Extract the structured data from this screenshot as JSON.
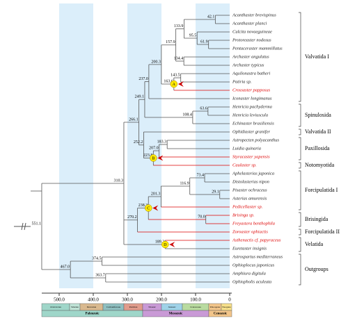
{
  "taxa": [
    {
      "name": "Acanthaster brevispinus",
      "highlight": false
    },
    {
      "name": "Acanthaster planci",
      "highlight": false
    },
    {
      "name": "Culcita novaeguineae",
      "highlight": false
    },
    {
      "name": "Protoreaster nodosus",
      "highlight": false
    },
    {
      "name": "Pentaceraster mammillatus",
      "highlight": false
    },
    {
      "name": "Archaster angulatus",
      "highlight": false
    },
    {
      "name": "Archaster typicus",
      "highlight": false
    },
    {
      "name": "Aquilonastra batheri",
      "highlight": false
    },
    {
      "name": "Patiria sp.",
      "highlight": false
    },
    {
      "name": "Crossaster papposus",
      "highlight": true
    },
    {
      "name": "Iconaster longimanus",
      "highlight": false
    },
    {
      "name": "Henricia pachyderma",
      "highlight": false
    },
    {
      "name": "Henricia leviuscula",
      "highlight": false
    },
    {
      "name": "Echinaster brasiliensis",
      "highlight": false
    },
    {
      "name": "Ophidiaster granifer",
      "highlight": false
    },
    {
      "name": "Astropecten polyacanthus",
      "highlight": false
    },
    {
      "name": "Luidia quinaria",
      "highlight": false
    },
    {
      "name": "Styracaster yapensis",
      "highlight": true
    },
    {
      "name": "Caulaster sp.",
      "highlight": true
    },
    {
      "name": "Aphelasterias japonica",
      "highlight": false
    },
    {
      "name": "Distolasterias nipon",
      "highlight": false
    },
    {
      "name": "Pisaster ochraceus",
      "highlight": false
    },
    {
      "name": "Asterias amurensis",
      "highlight": false
    },
    {
      "name": "Pedicellaster sp.",
      "highlight": true
    },
    {
      "name": "Brisinga sp.",
      "highlight": true
    },
    {
      "name": "Freyastera benthophila",
      "highlight": true
    },
    {
      "name": "Zoroaster ophiactis",
      "highlight": true
    },
    {
      "name": "Asthenactis cf. papyraceus",
      "highlight": true
    },
    {
      "name": "Euretaster insignis",
      "highlight": false
    },
    {
      "name": "Astrospartus mediterraneus",
      "highlight": false
    },
    {
      "name": "Ophioplocus japonicus",
      "highlight": false
    },
    {
      "name": "Amphiura digitula",
      "highlight": false
    },
    {
      "name": "Ophiopholis aculeata",
      "highlight": false
    }
  ],
  "groups": [
    "Valvatida I",
    "Spinulosida",
    "Valvatida II",
    "Paxillosida",
    "Notomyotida",
    "Forcipulatida I",
    "Brisingida",
    "Forcipulatida II",
    "Velatida",
    "Outgroups"
  ],
  "nodes": [
    42.1,
    95.5,
    61.9,
    133.9,
    134.4,
    157.9,
    143.5,
    163.6,
    200.3,
    {
      "value": 237,
      "label": "237.0"
    },
    63.6,
    108.4,
    249.1,
    266.1,
    183.3,
    {
      "value": 207,
      "label": "207.0"
    },
    223.8,
    252.2,
    73.4,
    29.1,
    116.9,
    201.3,
    {
      "value": 70,
      "label": "70.0"
    },
    238.3,
    270.2,
    189.2,
    310.3,
    374.5,
    363.7,
    {
      "value": 467,
      "label": "467.0"
    },
    551.1
  ],
  "markers": [
    "A",
    "B",
    "C",
    "D"
  ],
  "time_axis": {
    "ticks": [
      {
        "value": 500,
        "label": "500.0"
      },
      {
        "value": 400,
        "label": "400.0"
      },
      {
        "value": 300,
        "label": "300.0"
      },
      {
        "value": 200,
        "label": "200.0"
      },
      {
        "value": 100,
        "label": "100.0"
      },
      0
    ],
    "periods": [
      "Ordovician",
      "Silurian",
      "Devonian",
      "Carboniferous",
      "Permian",
      "Triassic",
      "Jurassic",
      "Cretaceous",
      "Paleogene",
      "Neogene"
    ],
    "eras": [
      "Paleozoic",
      "Mesozoic",
      "Cenozoic"
    ]
  }
}
